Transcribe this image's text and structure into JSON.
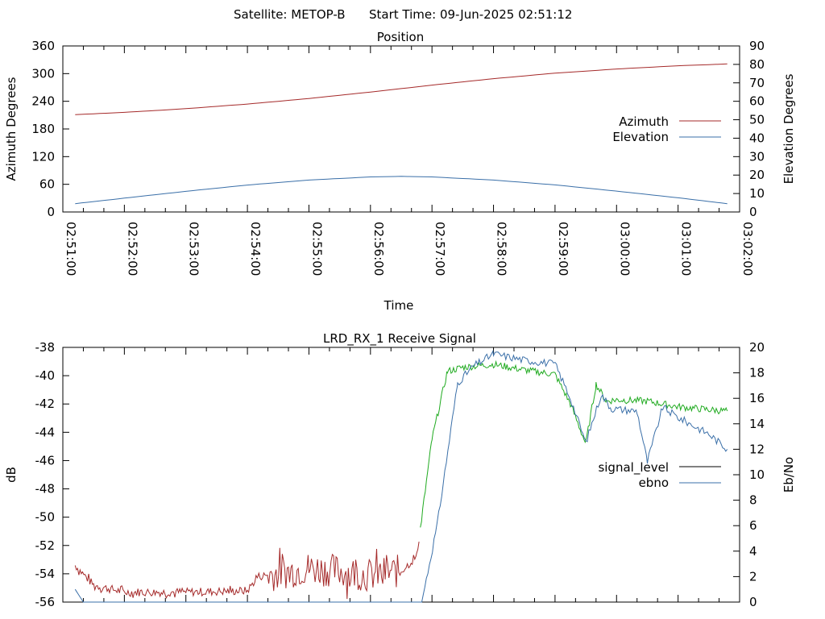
{
  "header": {
    "satellite_label": "Satellite: METOP-B",
    "start_time_label": "Start Time: 09-Jun-2025 02:51:12"
  },
  "chart_data": [
    {
      "type": "line",
      "title": "Position",
      "xlabel": "Time",
      "ylabel": "Azimuth Degrees",
      "y2label": "Elevation Degrees",
      "xlim": [
        "02:51:00",
        "03:02:00"
      ],
      "xticks": [
        "02:51:00",
        "02:52:00",
        "02:53:00",
        "02:54:00",
        "02:55:00",
        "02:56:00",
        "02:57:00",
        "02:58:00",
        "02:59:00",
        "03:00:00",
        "03:01:00",
        "03:02:00"
      ],
      "ylim": [
        0,
        360
      ],
      "yticks": [
        "0",
        "60",
        "120",
        "180",
        "240",
        "300",
        "360"
      ],
      "y2lim": [
        0,
        90
      ],
      "y2ticks": [
        "0",
        "10",
        "20",
        "30",
        "40",
        "50",
        "60",
        "70",
        "80",
        "90"
      ],
      "legend_position": "right",
      "grid": false,
      "series": [
        {
          "name": "Azimuth",
          "axis": "y",
          "color": "#a52a2a",
          "x": [
            "02:51:12",
            "02:52:00",
            "02:53:00",
            "02:54:00",
            "02:55:00",
            "02:56:00",
            "02:57:00",
            "02:58:00",
            "02:59:00",
            "03:00:00",
            "03:01:00",
            "03:01:48"
          ],
          "values": [
            211,
            216,
            224,
            234,
            246,
            260,
            275,
            289,
            301,
            310,
            317,
            321
          ]
        },
        {
          "name": "Elevation",
          "axis": "y2",
          "color": "#3a6fa8",
          "x": [
            "02:51:12",
            "02:52:00",
            "02:53:00",
            "02:54:00",
            "02:55:00",
            "02:56:00",
            "02:56:30",
            "02:57:00",
            "02:58:00",
            "02:59:00",
            "03:00:00",
            "03:01:00",
            "03:01:48"
          ],
          "values": [
            4.5,
            7.5,
            11.2,
            14.6,
            17.3,
            19.0,
            19.3,
            19.0,
            17.3,
            14.7,
            11.3,
            7.7,
            4.5
          ]
        }
      ]
    },
    {
      "type": "line",
      "title": "LRD_RX_1 Receive Signal",
      "xlabel": "",
      "ylabel": "dB",
      "y2label": "Eb/No",
      "xlim": [
        "02:51:00",
        "03:02:00"
      ],
      "ylim": [
        -56,
        -38
      ],
      "yticks": [
        "-56",
        "-54",
        "-52",
        "-50",
        "-48",
        "-46",
        "-44",
        "-42",
        "-40",
        "-38"
      ],
      "y2lim": [
        0,
        20
      ],
      "y2ticks": [
        "0",
        "2",
        "4",
        "6",
        "8",
        "10",
        "12",
        "14",
        "16",
        "18",
        "20"
      ],
      "legend_position": "right",
      "grid": false,
      "series": [
        {
          "name": "signal_level",
          "axis": "y",
          "color": "#a52a2a",
          "color_high": "#1faa1f",
          "x": [
            "02:51:12",
            "02:51:30",
            "02:52:00",
            "02:53:00",
            "02:54:00",
            "02:54:10",
            "02:55:00",
            "02:55:30",
            "02:56:00",
            "02:56:30",
            "02:56:45",
            "02:57:00",
            "02:57:15",
            "02:57:30",
            "02:58:00",
            "02:58:30",
            "02:59:00",
            "02:59:15",
            "02:59:30",
            "02:59:40",
            "02:59:50",
            "03:00:00",
            "03:00:30",
            "03:01:00",
            "03:01:30",
            "03:01:48"
          ],
          "values": [
            -53.4,
            -54.8,
            -55.3,
            -55.3,
            -55.2,
            -54.2,
            -53.6,
            -53.8,
            -54.1,
            -53.8,
            -52.8,
            -44.5,
            -39.7,
            -39.4,
            -39.2,
            -39.6,
            -39.9,
            -42.0,
            -44.8,
            -40.6,
            -41.8,
            -41.7,
            -41.8,
            -42.2,
            -42.4,
            -42.5
          ]
        },
        {
          "name": "ebno",
          "axis": "y2",
          "color": "#3a6fa8",
          "x": [
            "02:51:12",
            "02:51:20",
            "02:56:50",
            "02:57:05",
            "02:57:25",
            "02:57:40",
            "02:58:00",
            "02:58:30",
            "02:59:00",
            "02:59:15",
            "02:59:30",
            "02:59:45",
            "02:59:55",
            "03:00:20",
            "03:00:30",
            "03:00:45",
            "03:01:00",
            "03:01:30",
            "03:01:48"
          ],
          "values": [
            1.0,
            0.0,
            0.0,
            6.0,
            17.2,
            18.5,
            19.5,
            19.0,
            18.7,
            16.0,
            12.5,
            16.3,
            15.2,
            15.0,
            11.0,
            15.3,
            14.5,
            13.2,
            12.0
          ]
        }
      ]
    }
  ]
}
